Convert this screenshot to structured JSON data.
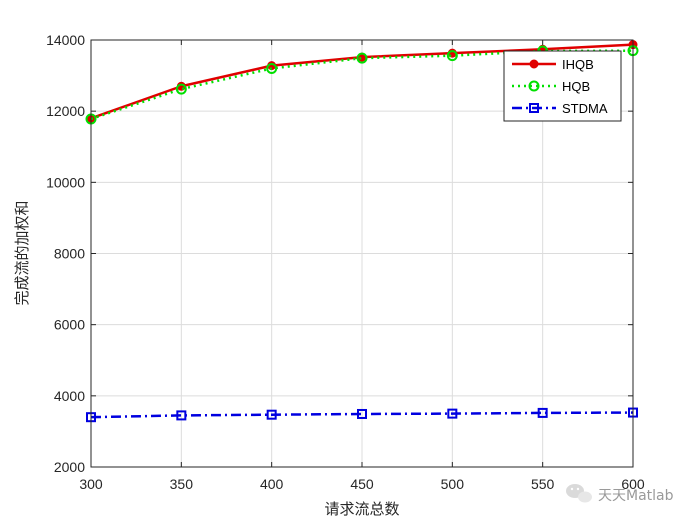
{
  "chart_data": {
    "type": "line",
    "title": "",
    "xlabel": "请求流总数",
    "ylabel": "完成流的加权和",
    "xlim": [
      300,
      600
    ],
    "ylim": [
      2000,
      14000
    ],
    "x": [
      300,
      350,
      400,
      450,
      500,
      550,
      600
    ],
    "xticks": [
      300,
      350,
      400,
      450,
      500,
      550,
      600
    ],
    "yticks": [
      2000,
      4000,
      6000,
      8000,
      10000,
      12000,
      14000
    ],
    "grid": true,
    "legend_position": "top-right",
    "series": [
      {
        "name": "IHQB",
        "color": "#e00000",
        "marker": "circle",
        "line": "solid",
        "values": [
          11800,
          12700,
          13280,
          13520,
          13630,
          13740,
          13870
        ]
      },
      {
        "name": "HQB",
        "color": "#00e000",
        "marker": "open-circle",
        "line": "dotted",
        "values": [
          11780,
          12620,
          13200,
          13490,
          13560,
          13690,
          13700
        ]
      },
      {
        "name": "STDMA",
        "color": "#0000e0",
        "marker": "square",
        "line": "dashdot",
        "values": [
          3400,
          3450,
          3470,
          3490,
          3500,
          3520,
          3530
        ]
      }
    ]
  },
  "watermark": {
    "text": "天天Matlab",
    "icon": "wechat-icon"
  }
}
